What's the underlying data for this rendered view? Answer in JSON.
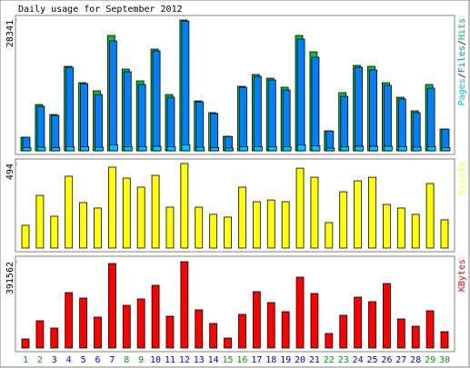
{
  "chart_data": {
    "type": "bar",
    "title": "Daily usage for September 2012",
    "categories": [
      "1",
      "2",
      "3",
      "4",
      "5",
      "6",
      "7",
      "8",
      "9",
      "10",
      "11",
      "12",
      "13",
      "14",
      "15",
      "16",
      "17",
      "18",
      "19",
      "20",
      "21",
      "22",
      "23",
      "24",
      "25",
      "26",
      "27",
      "28",
      "29",
      "30"
    ],
    "category_colors": [
      "#00a000",
      "#00a000",
      "#0000ff",
      "#0000ff",
      "#0000ff",
      "#0000ff",
      "#0000ff",
      "#00a000",
      "#00a000",
      "#0000ff",
      "#0000ff",
      "#0000ff",
      "#0000ff",
      "#0000ff",
      "#00a000",
      "#00a000",
      "#0000ff",
      "#0000ff",
      "#0000ff",
      "#0000ff",
      "#0000ff",
      "#00a000",
      "#00a000",
      "#0000ff",
      "#0000ff",
      "#0000ff",
      "#0000ff",
      "#0000ff",
      "#00a000",
      "#00a000"
    ],
    "legend_separator": "/",
    "panels": [
      {
        "ylim": [
          0,
          28341
        ],
        "yticks": [
          28341
        ],
        "series": [
          {
            "name": "Hits",
            "color": "#00c040",
            "values": [
              2950,
              10040,
              7870,
              18300,
              14760,
              12990,
              24990,
              17710,
              15150,
              22040,
              12200,
              28341,
              10820,
              8270,
              3150,
              13970,
              16530,
              15740,
              13780,
              24990,
              21450,
              4330,
              12600,
              18500,
              18300,
              14760,
              11610,
              8660,
              14370,
              4720
            ]
          },
          {
            "name": "Files",
            "color": "#0080ff",
            "values": [
              2950,
              9640,
              7680,
              18100,
              14560,
              12200,
              23810,
              17120,
              14370,
              21650,
              11610,
              28100,
              10630,
              8070,
              3100,
              13780,
              16140,
              15350,
              13190,
              24200,
              20270,
              4300,
              11810,
              18100,
              17510,
              14170,
              11220,
              8270,
              13580,
              4700
            ]
          },
          {
            "name": "Pages",
            "color": "#00c0ff",
            "values": [
              700,
              800,
              700,
              900,
              900,
              800,
              1300,
              900,
              900,
              1000,
              900,
              1300,
              800,
              700,
              600,
              900,
              900,
              900,
              900,
              1300,
              1100,
              600,
              900,
              1000,
              1000,
              1000,
              900,
              800,
              900,
              700
            ]
          }
        ]
      },
      {
        "ylim": [
          0,
          494
        ],
        "yticks": [
          494
        ],
        "series": [
          {
            "name": "Visits",
            "color": "#ffff00",
            "values": [
              133,
              308,
              186,
              420,
              266,
              234,
              473,
              409,
              356,
              425,
              239,
              494,
              239,
              197,
              181,
              356,
              271,
              281,
              271,
              467,
              414,
              149,
              329,
              393,
              414,
              255,
              234,
              197,
              377,
              165
            ]
          }
        ]
      },
      {
        "ylim": [
          0,
          391562
        ],
        "yticks": [
          391562
        ],
        "series": [
          {
            "name": "KBytes",
            "color": "#ff0000",
            "values": [
              41200,
              123700,
              90700,
              251400,
              226700,
              140100,
              383300,
              193700,
              222600,
              284400,
              144300,
              391562,
              173100,
              111300,
              45300,
              152500,
              255600,
              206100,
              164900,
              321500,
              247300,
              66000,
              148400,
              230800,
              210200,
              292700,
              131900,
              98900,
              169000,
              74200
            ]
          }
        ]
      }
    ]
  }
}
